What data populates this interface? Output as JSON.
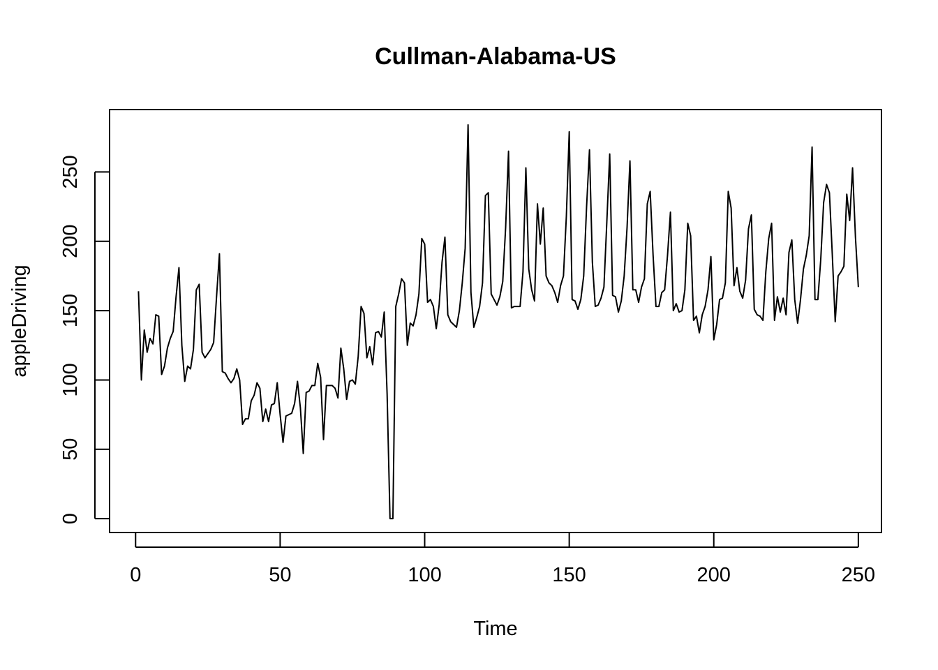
{
  "chart_data": {
    "type": "line",
    "title": "Cullman-Alabama-US",
    "xlabel": "Time",
    "ylabel": "appleDriving",
    "xlim": [
      -9,
      258
    ],
    "ylim": [
      -10,
      295
    ],
    "x_ticks": [
      0,
      50,
      100,
      150,
      200,
      250
    ],
    "y_ticks": [
      0,
      50,
      100,
      150,
      200,
      250
    ],
    "x_tick_labels": [
      "0",
      "50",
      "100",
      "150",
      "200",
      "250"
    ],
    "y_tick_labels": [
      "0",
      "50",
      "100",
      "150",
      "200",
      "250"
    ],
    "grid": false,
    "legend": "none",
    "series": [
      {
        "x_start": 1,
        "x_step": 1,
        "values": [
          164,
          100,
          136,
          120,
          130,
          126,
          147,
          146,
          104,
          110,
          123,
          130,
          135,
          160,
          181,
          125,
          99,
          110,
          108,
          122,
          165,
          169,
          120,
          116,
          119,
          122,
          127,
          160,
          191,
          106,
          105,
          101,
          98,
          101,
          108,
          100,
          68,
          72,
          72,
          85,
          89,
          98,
          94,
          70,
          79,
          70,
          82,
          83,
          98,
          75,
          55,
          74,
          75,
          76,
          83,
          99,
          80,
          47,
          91,
          92,
          96,
          96,
          112,
          102,
          57,
          96,
          96,
          96,
          94,
          87,
          123,
          108,
          86,
          99,
          100,
          97,
          117,
          153,
          148,
          116,
          124,
          111,
          134,
          135,
          131,
          149,
          90,
          0,
          0,
          153,
          162,
          173,
          170,
          125,
          141,
          139,
          147,
          162,
          202,
          198,
          156,
          158,
          153,
          137,
          154,
          185,
          203,
          147,
          142,
          140,
          138,
          150,
          170,
          195,
          284,
          163,
          138,
          145,
          153,
          170,
          233,
          235,
          162,
          158,
          154,
          160,
          171,
          210,
          265,
          152,
          153,
          153,
          153,
          178,
          253,
          180,
          165,
          157,
          227,
          198,
          224,
          175,
          170,
          168,
          163,
          156,
          168,
          175,
          218,
          279,
          158,
          157,
          151,
          158,
          175,
          225,
          266,
          185,
          153,
          154,
          159,
          167,
          214,
          263,
          161,
          160,
          149,
          157,
          175,
          210,
          258,
          165,
          165,
          156,
          167,
          173,
          227,
          236,
          190,
          153,
          153,
          163,
          165,
          190,
          221,
          150,
          155,
          149,
          150,
          165,
          213,
          204,
          143,
          146,
          134,
          147,
          153,
          165,
          189,
          129,
          140,
          158,
          159,
          170,
          236,
          224,
          168,
          181,
          164,
          159,
          172,
          209,
          219,
          151,
          147,
          146,
          143,
          178,
          202,
          213,
          143,
          160,
          149,
          159,
          147,
          192,
          201,
          158,
          141,
          158,
          180,
          190,
          204,
          268,
          158,
          158,
          187,
          228,
          241,
          235,
          190,
          142,
          175,
          178,
          182,
          234,
          215,
          253,
          203,
          167
        ]
      }
    ]
  }
}
